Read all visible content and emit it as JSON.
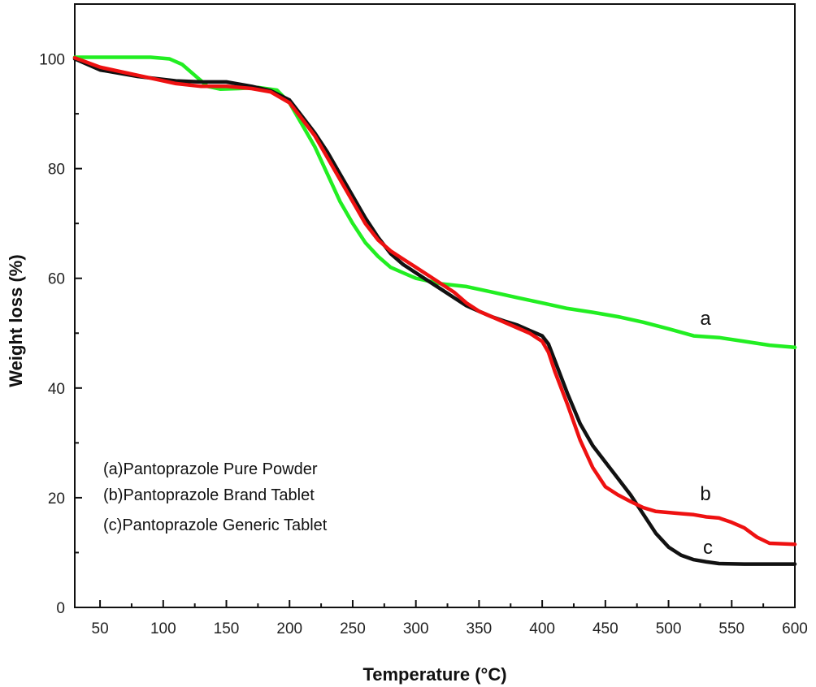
{
  "chart_data": {
    "type": "line",
    "xlabel": "Temperature (°C)",
    "ylabel": "Weight loss (%)",
    "xlim": [
      30,
      600
    ],
    "ylim": [
      0,
      110
    ],
    "xticks": [
      50,
      100,
      150,
      200,
      250,
      300,
      350,
      400,
      450,
      500,
      550,
      600
    ],
    "yticks": [
      0,
      20,
      40,
      60,
      80,
      100
    ],
    "grid": false,
    "legend_position": "bottom-left",
    "legend": [
      "(a)Pantoprazole Pure Powder",
      "(b)Pantoprazole Brand Tablet",
      "(c)Pantoprazole Generic Tablet"
    ],
    "series": [
      {
        "label": "a",
        "color": "#22ee22",
        "x": [
          30,
          60,
          90,
          105,
          115,
          125,
          135,
          145,
          160,
          175,
          190,
          200,
          210,
          220,
          230,
          240,
          250,
          260,
          270,
          280,
          290,
          300,
          310,
          320,
          340,
          360,
          380,
          400,
          420,
          440,
          460,
          480,
          500,
          520,
          540,
          560,
          580,
          600
        ],
        "y": [
          100.3,
          100.3,
          100.3,
          100.0,
          99.0,
          97.0,
          95.0,
          94.5,
          94.6,
          94.8,
          94.3,
          92.0,
          88.0,
          84.0,
          79.0,
          74.0,
          70.0,
          66.5,
          64.0,
          62.0,
          61.0,
          60.0,
          59.5,
          59.0,
          58.5,
          57.5,
          56.5,
          55.5,
          54.5,
          53.8,
          53.0,
          52.0,
          50.8,
          49.5,
          49.2,
          48.5,
          47.8,
          47.4
        ]
      },
      {
        "label": "b",
        "color": "#ee1111",
        "x": [
          30,
          50,
          80,
          110,
          130,
          150,
          170,
          185,
          200,
          210,
          220,
          230,
          240,
          250,
          260,
          270,
          280,
          290,
          300,
          310,
          320,
          330,
          340,
          350,
          360,
          370,
          380,
          390,
          400,
          405,
          410,
          420,
          430,
          440,
          450,
          460,
          470,
          480,
          490,
          500,
          510,
          520,
          530,
          540,
          550,
          560,
          570,
          580,
          600
        ],
        "y": [
          100.2,
          98.5,
          97.0,
          95.5,
          95.0,
          95.0,
          94.6,
          94.0,
          92.0,
          89.0,
          86.0,
          82.0,
          78.0,
          74.0,
          70.0,
          67.0,
          65.0,
          63.5,
          62.0,
          60.5,
          59.0,
          57.5,
          55.5,
          54.0,
          53.0,
          52.0,
          51.0,
          50.0,
          48.5,
          46.5,
          43.0,
          37.0,
          30.5,
          25.5,
          22.0,
          20.5,
          19.3,
          18.2,
          17.5,
          17.3,
          17.1,
          16.9,
          16.5,
          16.3,
          15.5,
          14.5,
          12.8,
          11.7,
          11.5
        ]
      },
      {
        "label": "c",
        "color": "#111111",
        "x": [
          30,
          50,
          80,
          110,
          130,
          150,
          170,
          185,
          200,
          210,
          220,
          230,
          240,
          250,
          260,
          270,
          280,
          290,
          300,
          310,
          320,
          330,
          340,
          350,
          360,
          370,
          380,
          390,
          400,
          405,
          410,
          420,
          430,
          440,
          450,
          460,
          470,
          480,
          490,
          500,
          510,
          520,
          530,
          540,
          560,
          580,
          600
        ],
        "y": [
          100.0,
          98.0,
          96.8,
          96.0,
          95.8,
          95.8,
          95.0,
          94.2,
          92.5,
          89.5,
          86.5,
          83.0,
          79.0,
          75.0,
          71.0,
          67.5,
          64.5,
          62.5,
          61.0,
          59.5,
          58.0,
          56.5,
          55.0,
          54.0,
          53.0,
          52.2,
          51.5,
          50.5,
          49.5,
          48.0,
          45.0,
          39.0,
          33.5,
          29.5,
          26.5,
          23.5,
          20.5,
          17.0,
          13.5,
          11.0,
          9.5,
          8.7,
          8.3,
          8.0,
          7.9,
          7.9,
          7.9
        ]
      }
    ]
  }
}
